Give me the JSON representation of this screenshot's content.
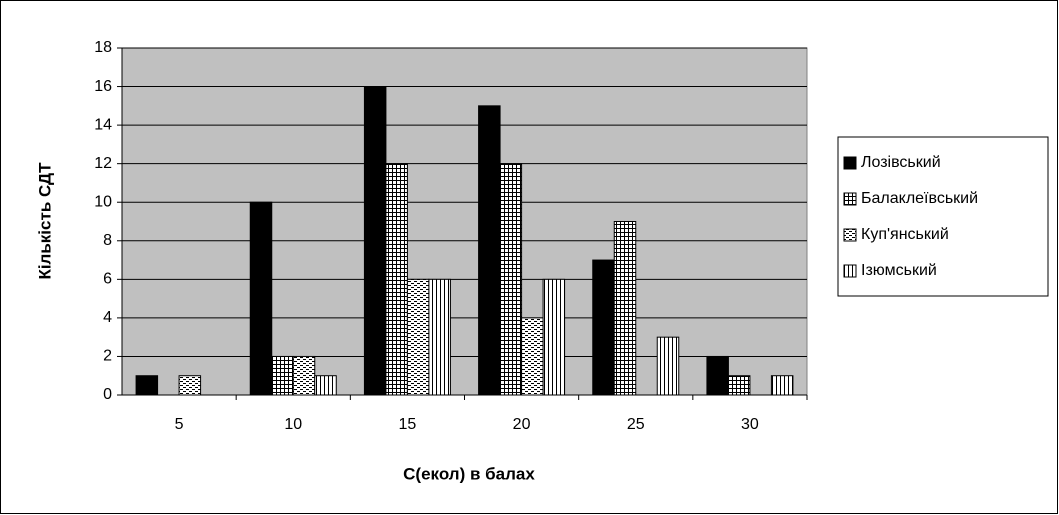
{
  "chart_data": {
    "type": "bar",
    "xlabel": "С(екол) в балах",
    "ylabel": "Кількість СДТ",
    "categories": [
      "5",
      "10",
      "15",
      "20",
      "25",
      "30"
    ],
    "series": [
      {
        "name": "Лозівський",
        "color": "#000000",
        "values": [
          1,
          10,
          16,
          15,
          7,
          2
        ]
      },
      {
        "name": "Балаклеївський",
        "color": "#000000",
        "values": [
          0,
          2,
          12,
          12,
          9,
          1
        ]
      },
      {
        "name": "Куп'янський",
        "color": "#000000",
        "values": [
          1,
          2,
          6,
          4,
          0,
          0
        ]
      },
      {
        "name": "Ізюмський",
        "color": "#000000",
        "values": [
          0,
          1,
          6,
          6,
          3,
          1
        ]
      }
    ],
    "ylim": [
      0,
      18
    ],
    "yticks": [
      0,
      2,
      4,
      6,
      8,
      10,
      12,
      14,
      16,
      18
    ],
    "grid": true,
    "legend": "right"
  }
}
